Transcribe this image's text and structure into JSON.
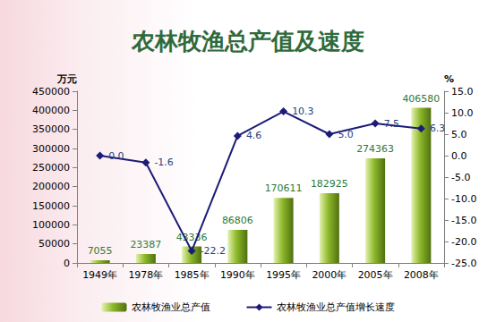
{
  "chart_data": {
    "type": "bar",
    "title": "农林牧渔总产值及速度",
    "categories": [
      "1949年",
      "1978年",
      "1985年",
      "1990年",
      "1995年",
      "2000年",
      "2005年",
      "2008年"
    ],
    "series": [
      {
        "name": "农林牧渔业总产值",
        "type": "bar",
        "color": "#8db82a",
        "values": [
          7055,
          23387,
          43336,
          86806,
          170611,
          182925,
          274363,
          406580
        ]
      },
      {
        "name": "农林牧渔业总产值增长速度",
        "type": "line",
        "color": "#1c1c78",
        "marker": "diamond",
        "axis": "y2",
        "values": [
          0.0,
          -1.6,
          -22.2,
          4.6,
          10.3,
          5.0,
          7.5,
          6.3
        ],
        "value_labels": [
          "0.0",
          "-1.6",
          "-22.2",
          "4.6",
          "10.3",
          "5.0",
          "7.5",
          "6.3"
        ]
      }
    ],
    "ylabel": "万元",
    "y2label": "%",
    "ylim": [
      0,
      450000
    ],
    "yticks": [
      0,
      50000,
      100000,
      150000,
      200000,
      250000,
      300000,
      350000,
      400000,
      450000
    ],
    "y2lim": [
      -25,
      15
    ],
    "y2ticks": [
      {
        "value": -25,
        "label": "-25.0"
      },
      {
        "value": -20,
        "label": "-20.0"
      },
      {
        "value": -15,
        "label": "-15.0"
      },
      {
        "value": -10,
        "label": "-10.0"
      },
      {
        "value": -5,
        "label": "-5.0"
      },
      {
        "value": 0,
        "label": "0.0"
      },
      {
        "value": 5,
        "label": "5.0"
      },
      {
        "value": 10,
        "label": "10.0"
      },
      {
        "value": 15,
        "label": "15.0"
      }
    ],
    "data_labels": true,
    "grid": false,
    "legend": "bottom"
  }
}
